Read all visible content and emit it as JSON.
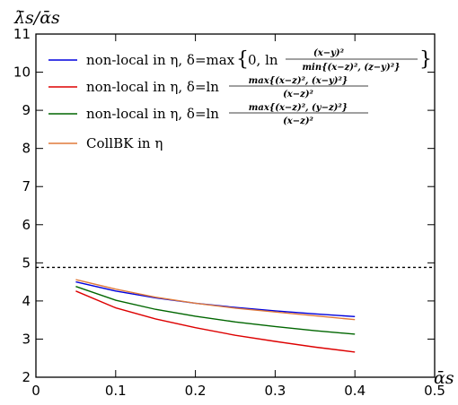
{
  "chart_data": {
    "type": "line",
    "ylabel": "λ̄s/ᾱs",
    "xlabel": "ᾱs",
    "xlim": [
      0,
      0.5
    ],
    "ylim": [
      2,
      11
    ],
    "xticks": [
      "0",
      "0.1",
      "0.2",
      "0.3",
      "0.4",
      "0.5"
    ],
    "yticks": [
      "2",
      "3",
      "4",
      "5",
      "6",
      "7",
      "8",
      "9",
      "10",
      "11"
    ],
    "xtick_values": [
      0,
      0.1,
      0.2,
      0.3,
      0.4,
      0.5
    ],
    "ytick_values": [
      2,
      3,
      4,
      5,
      6,
      7,
      8,
      9,
      10,
      11
    ],
    "reference_line": {
      "y": 4.88,
      "style": "dashed"
    },
    "legend_position": "top-left",
    "grid": false,
    "series": [
      {
        "name": "non-local in η, δ=max{0, ln (x−y)²/min{(x−z)², (z−y)²}}",
        "color": "#0000dd",
        "x": [
          0.05,
          0.1,
          0.15,
          0.2,
          0.25,
          0.3,
          0.35,
          0.4
        ],
        "y": [
          4.5,
          4.26,
          4.08,
          3.94,
          3.83,
          3.74,
          3.66,
          3.59
        ]
      },
      {
        "name": "non-local in η, δ=ln max{(x−z)², (x−y)²}/(x−z)²",
        "color": "#dd0000",
        "x": [
          0.05,
          0.1,
          0.15,
          0.2,
          0.25,
          0.3,
          0.35,
          0.4
        ],
        "y": [
          4.26,
          3.82,
          3.53,
          3.3,
          3.1,
          2.94,
          2.79,
          2.66
        ]
      },
      {
        "name": "non-local in η, δ=ln max{(x−z)², (y−z)²}/(x−z)²",
        "color": "#006600",
        "x": [
          0.05,
          0.1,
          0.15,
          0.2,
          0.25,
          0.3,
          0.35,
          0.4
        ],
        "y": [
          4.38,
          4.02,
          3.78,
          3.6,
          3.45,
          3.33,
          3.22,
          3.13
        ]
      },
      {
        "name": "CollBK in η",
        "color": "#e07a3a",
        "x": [
          0.05,
          0.1,
          0.15,
          0.2,
          0.25,
          0.3,
          0.35,
          0.4
        ],
        "y": [
          4.56,
          4.31,
          4.1,
          3.94,
          3.81,
          3.71,
          3.61,
          3.51
        ]
      }
    ],
    "legend": {
      "l1": "non-local in η, δ=max",
      "l1_brace_open": "{",
      "l1_zero": "0, ln",
      "l1_num": "(x−y)²",
      "l1_den": "min{(x−z)², (z−y)²}",
      "l1_brace_close": "}",
      "l2": "non-local in η, δ=ln",
      "l2_num": "max{(x−z)², (x−y)²}",
      "l2_den": "(x−z)²",
      "l3": "non-local in η, δ=ln",
      "l3_num": "max{(x−z)², (y−z)²}",
      "l3_den": "(x−z)²",
      "l4": "CollBK in η"
    }
  }
}
